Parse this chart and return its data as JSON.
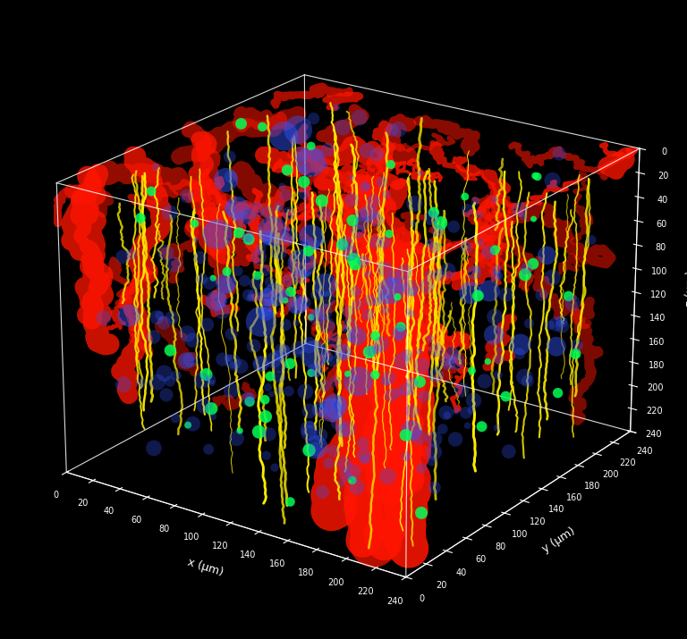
{
  "background_color": "#000000",
  "figsize": [
    7.68,
    7.15
  ],
  "dpi": 100,
  "elev": 22,
  "azim": -55,
  "axis_max": 240,
  "axis_ticks": [
    0,
    20,
    40,
    60,
    80,
    100,
    120,
    140,
    160,
    180,
    200,
    220,
    240
  ],
  "xlabel": "x (µm)",
  "ylabel": "y (µm)",
  "zlabel": "z (µm)",
  "label_color": "white",
  "tick_color": "white",
  "tick_fontsize": 7,
  "label_fontsize": 9,
  "colors": {
    "neurons_gfp": "#00ff55",
    "microglia_yfp": "#ffee00",
    "astrocytes": "#3355ff",
    "blood_vessels": "#ff1500",
    "box": "white"
  }
}
